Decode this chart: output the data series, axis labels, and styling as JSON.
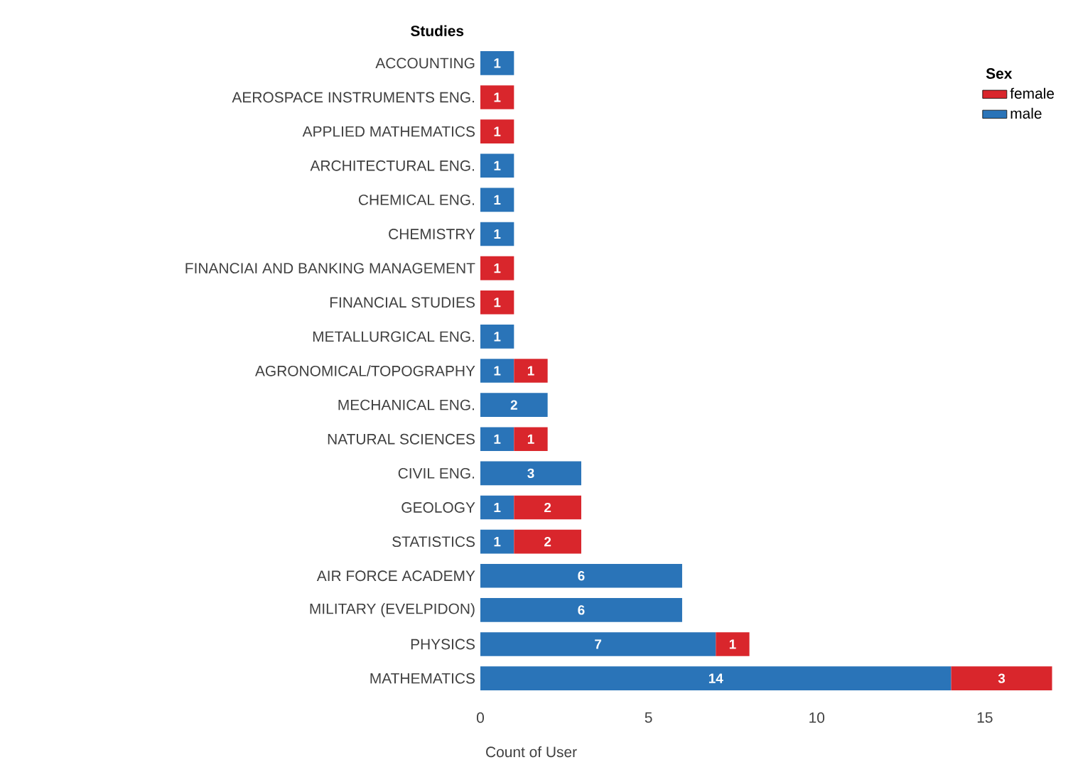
{
  "chart_data": {
    "type": "bar",
    "orientation": "horizontal",
    "stacked": true,
    "ylabel": "Studies",
    "xlabel": "Count of User",
    "legend_title": "Sex",
    "legend": "top right",
    "data_labels": true,
    "categories": [
      "ACCOUNTING",
      "AEROSPACE INSTRUMENTS ENG.",
      "APPLIED MATHEMATICS",
      "ARCHITECTURAL ENG.",
      "CHEMICAL ENG.",
      "CHEMISTRY",
      "FINANCIAI AND BANKING MANAGEMENT",
      "FINANCIAL STUDIES",
      "METALLURGICAL ENG.",
      "AGRONOMICAL/TOPOGRAPHY",
      "MECHANICAL ENG.",
      "NATURAL SCIENCES",
      "CIVIL ENG.",
      "GEOLOGY",
      "STATISTICS",
      "AIR FORCE ACADEMY",
      "MILITARY (EVELPIDON)",
      "PHYSICS",
      "MATHEMATICS"
    ],
    "series": [
      {
        "name": "male",
        "color": "#2a74b8",
        "values": [
          1,
          null,
          null,
          1,
          1,
          1,
          null,
          null,
          1,
          1,
          2,
          1,
          3,
          1,
          1,
          6,
          6,
          7,
          14
        ]
      },
      {
        "name": "female",
        "color": "#d9262c",
        "values": [
          null,
          1,
          1,
          null,
          null,
          null,
          1,
          1,
          null,
          1,
          null,
          1,
          null,
          2,
          2,
          null,
          null,
          1,
          3
        ]
      }
    ],
    "xlim": [
      0,
      17.2
    ],
    "xticks": [
      0,
      5,
      10,
      15
    ]
  }
}
